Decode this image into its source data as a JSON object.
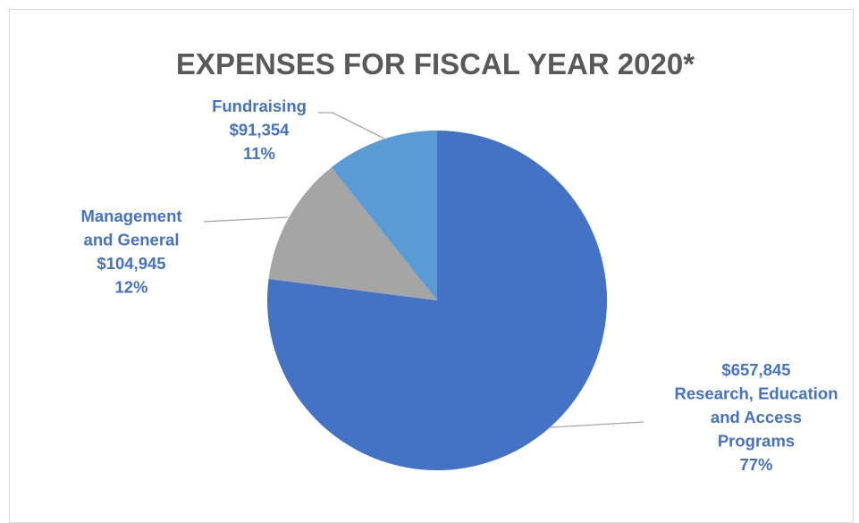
{
  "chart_data": {
    "type": "pie",
    "title": "EXPENSES FOR FISCAL YEAR 2020*",
    "slices": [
      {
        "key": "research",
        "name": "Research, Education and Access Programs",
        "value": 657845,
        "percent": 77,
        "color": "#4472c4",
        "label_lines": [
          "$657,845",
          "Research, Education",
          "and Access",
          "Programs",
          "77%"
        ]
      },
      {
        "key": "management",
        "name": "Management and General",
        "value": 104945,
        "percent": 12,
        "color": "#a5a5a5",
        "label_lines": [
          "Management",
          "and General",
          "$104,945",
          "12%"
        ]
      },
      {
        "key": "fundraising",
        "name": "Fundraising",
        "value": 91354,
        "percent": 11,
        "color": "#5b9bd5",
        "label_lines": [
          "Fundraising",
          "$91,354",
          "11%"
        ]
      }
    ],
    "label_color": "#4472c4",
    "leader_color": "#a6a6a6"
  }
}
